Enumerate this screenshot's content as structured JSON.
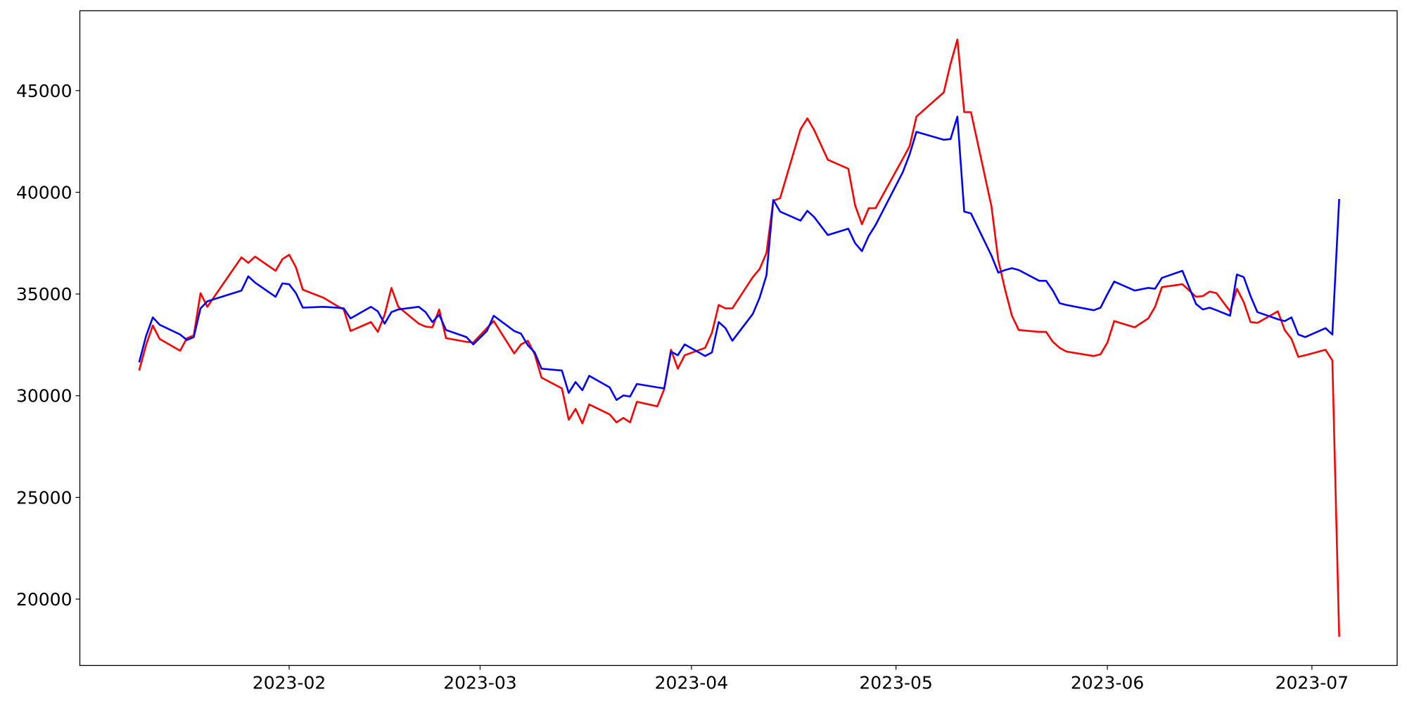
{
  "chart_data": {
    "type": "line",
    "x": [
      19367,
      19368,
      19369,
      19370,
      19373,
      19374,
      19375,
      19376,
      19377,
      19382,
      19383,
      19384,
      19387,
      19388,
      19389,
      19390,
      19391,
      19394,
      19396,
      19397,
      19398,
      19401,
      19402,
      19403,
      19404,
      19405,
      19408,
      19409,
      19410,
      19411,
      19412,
      19415,
      19416,
      19418,
      19419,
      19422,
      19423,
      19424,
      19425,
      19426,
      19429,
      19430,
      19431,
      19432,
      19433,
      19436,
      19437,
      19438,
      19439,
      19440,
      19443,
      19444,
      19445,
      19446,
      19447,
      19450,
      19451,
      19452,
      19453,
      19454,
      19457,
      19458,
      19459,
      19460,
      19461,
      19464,
      19465,
      19466,
      19468,
      19471,
      19472,
      19473,
      19474,
      19475,
      19479,
      19480,
      19481,
      19485,
      19486,
      19487,
      19488,
      19489,
      19492,
      19493,
      19494,
      19495,
      19496,
      19499,
      19500,
      19501,
      19502,
      19503,
      19507,
      19508,
      19509,
      19510,
      19513,
      19515,
      19516,
      19517,
      19520,
      19522,
      19523,
      19524,
      19525,
      19527,
      19528,
      19529,
      19530,
      19531,
      19534,
      19535,
      19536,
      19537,
      19538,
      19541,
      19542,
      19543
    ],
    "series": [
      {
        "color": "#ff0000",
        "values": [
          31240,
          32480,
          33450,
          32790,
          32210,
          32830,
          32960,
          35040,
          34370,
          36800,
          36530,
          36840,
          36140,
          36710,
          36930,
          36310,
          35210,
          34820,
          34420,
          34240,
          33180,
          33620,
          33140,
          33980,
          35300,
          34370,
          33540,
          33400,
          33360,
          34240,
          32830,
          32650,
          32610,
          33320,
          33670,
          32080,
          32520,
          32700,
          32040,
          30890,
          30360,
          28820,
          29350,
          28640,
          29570,
          29080,
          28690,
          28910,
          28690,
          29700,
          29480,
          30320,
          32260,
          31330,
          31990,
          32350,
          33100,
          34460,
          34290,
          34290,
          35830,
          36230,
          37020,
          39580,
          39710,
          43100,
          43630,
          43060,
          41600,
          41160,
          39360,
          38430,
          39220,
          39220,
          41650,
          42270,
          43720,
          44910,
          46320,
          47510,
          43940,
          43940,
          39310,
          36670,
          35210,
          33930,
          33230,
          33140,
          33140,
          32650,
          32350,
          32170,
          31950,
          32040,
          32610,
          33670,
          33360,
          33800,
          34370,
          35340,
          35480,
          34860,
          34900,
          35120,
          35040,
          34150,
          35260,
          34600,
          33620,
          33580,
          34150,
          33230,
          32790,
          31910,
          31990,
          32260,
          31730,
          18150
        ]
      },
      {
        "color": "#0000ff",
        "values": [
          31640,
          32920,
          33850,
          33490,
          33010,
          32740,
          32880,
          34290,
          34640,
          35170,
          35870,
          35560,
          34860,
          35520,
          35480,
          35040,
          34330,
          34370,
          34330,
          34290,
          33800,
          34370,
          34150,
          33540,
          34110,
          34240,
          34370,
          34110,
          33620,
          33980,
          33230,
          32880,
          32520,
          33180,
          33930,
          33180,
          33050,
          32480,
          32130,
          31330,
          31240,
          30140,
          30670,
          30270,
          30980,
          30410,
          29790,
          30010,
          29960,
          30580,
          30410,
          30360,
          32170,
          31990,
          32520,
          31950,
          32130,
          33620,
          33320,
          32700,
          34020,
          34820,
          35920,
          39620,
          39050,
          38610,
          39090,
          38780,
          37900,
          38210,
          37500,
          37110,
          37860,
          38390,
          40990,
          41870,
          42970,
          42580,
          42620,
          43720,
          39050,
          38960,
          36890,
          36050,
          36180,
          36270,
          36180,
          35650,
          35650,
          35170,
          34550,
          34460,
          34200,
          34330,
          34990,
          35610,
          35170,
          35300,
          35260,
          35790,
          36140,
          34510,
          34240,
          34330,
          34200,
          33930,
          35960,
          35830,
          34900,
          34110,
          33760,
          33670,
          33850,
          33010,
          32880,
          33320,
          33010,
          39670
        ]
      }
    ],
    "xlim": [
      19358.3,
      19551.5
    ],
    "xticks": [
      {
        "value": 19389,
        "label": "2023-02"
      },
      {
        "value": 19417,
        "label": "2023-03"
      },
      {
        "value": 19448,
        "label": "2023-04"
      },
      {
        "value": 19478,
        "label": "2023-05"
      },
      {
        "value": 19509,
        "label": "2023-06"
      },
      {
        "value": 19539,
        "label": "2023-07"
      }
    ],
    "ylim": [
      16737,
      48924
    ],
    "yticks": [
      20000,
      25000,
      30000,
      35000,
      40000,
      45000
    ]
  }
}
